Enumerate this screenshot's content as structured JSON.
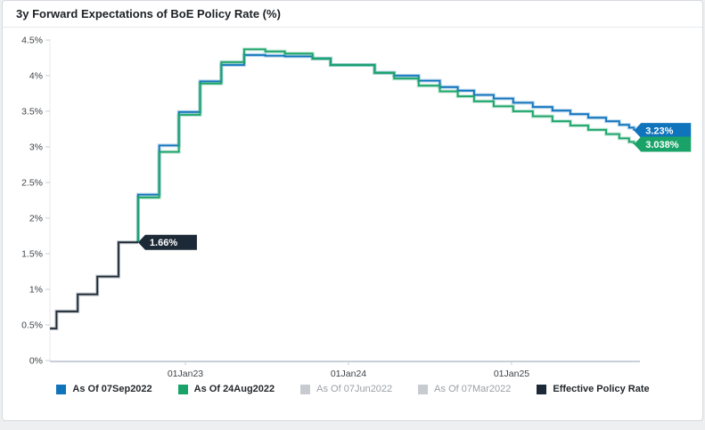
{
  "header": {
    "title": "3y Forward Expectations of BoE Policy Rate (%)"
  },
  "chart_data": {
    "type": "line",
    "step": true,
    "title": "3y Forward Expectations of BoE Policy Rate (%)",
    "grid": false,
    "legend_position": "bottom",
    "x_axis": {
      "range": [
        2022.15,
        2025.82
      ],
      "ticks": [
        {
          "pos": 2023,
          "label": "01Jan23"
        },
        {
          "pos": 2024,
          "label": "01Jan24"
        },
        {
          "pos": 2025,
          "label": "01Jan25"
        }
      ]
    },
    "y_axis": {
      "unit": "%",
      "range": [
        0,
        4.5
      ],
      "ticks": [
        {
          "v": 0,
          "label": "0%"
        },
        {
          "v": 0.5,
          "label": "0.5%"
        },
        {
          "v": 1,
          "label": "1%"
        },
        {
          "v": 1.5,
          "label": "1.5%"
        },
        {
          "v": 2,
          "label": "2%"
        },
        {
          "v": 2.5,
          "label": "2.5%"
        },
        {
          "v": 3,
          "label": "3%"
        },
        {
          "v": 3.5,
          "label": "3.5%"
        },
        {
          "v": 4,
          "label": "4%"
        },
        {
          "v": 4.5,
          "label": "4.5%"
        }
      ]
    },
    "series": [
      {
        "name": "As Of 07Sep2022",
        "color": "#1074bc",
        "end_label": "3.23%",
        "x_end": 2025.75,
        "tag_width": 64,
        "points": [
          [
            2022.71,
            1.66
          ],
          [
            2022.71,
            2.33
          ],
          [
            2022.84,
            3.02
          ],
          [
            2022.96,
            3.49
          ],
          [
            2023.09,
            3.92
          ],
          [
            2023.22,
            4.15
          ],
          [
            2023.36,
            4.29
          ],
          [
            2023.49,
            4.28
          ],
          [
            2023.61,
            4.27
          ],
          [
            2023.78,
            4.24
          ],
          [
            2023.89,
            4.15
          ],
          [
            2024.16,
            4.04
          ],
          [
            2024.28,
            4.0
          ],
          [
            2024.43,
            3.93
          ],
          [
            2024.56,
            3.84
          ],
          [
            2024.67,
            3.79
          ],
          [
            2024.77,
            3.73
          ],
          [
            2024.89,
            3.68
          ],
          [
            2025.01,
            3.62
          ],
          [
            2025.13,
            3.56
          ],
          [
            2025.25,
            3.51
          ],
          [
            2025.36,
            3.46
          ],
          [
            2025.47,
            3.41
          ],
          [
            2025.58,
            3.36
          ],
          [
            2025.66,
            3.31
          ],
          [
            2025.72,
            3.27
          ],
          [
            2025.75,
            3.23
          ]
        ]
      },
      {
        "name": "As Of 24Aug2022",
        "color": "#1aa368",
        "end_label": "3.038%",
        "x_end": 2025.75,
        "tag_width": 64,
        "points": [
          [
            2022.71,
            1.66
          ],
          [
            2022.71,
            2.29
          ],
          [
            2022.84,
            2.93
          ],
          [
            2022.96,
            3.45
          ],
          [
            2023.09,
            3.89
          ],
          [
            2023.22,
            4.19
          ],
          [
            2023.36,
            4.37
          ],
          [
            2023.49,
            4.34
          ],
          [
            2023.61,
            4.31
          ],
          [
            2023.78,
            4.24
          ],
          [
            2023.89,
            4.15
          ],
          [
            2024.16,
            4.04
          ],
          [
            2024.28,
            3.96
          ],
          [
            2024.43,
            3.86
          ],
          [
            2024.56,
            3.78
          ],
          [
            2024.67,
            3.71
          ],
          [
            2024.77,
            3.64
          ],
          [
            2024.89,
            3.57
          ],
          [
            2025.01,
            3.5
          ],
          [
            2025.13,
            3.43
          ],
          [
            2025.25,
            3.36
          ],
          [
            2025.36,
            3.3
          ],
          [
            2025.47,
            3.24
          ],
          [
            2025.58,
            3.18
          ],
          [
            2025.66,
            3.12
          ],
          [
            2025.72,
            3.07
          ],
          [
            2025.75,
            3.038
          ]
        ]
      },
      {
        "name": "Effective Policy Rate",
        "color": "#1c2936",
        "end_label": "1.66%",
        "x_end": 2022.71,
        "tag_width": 66,
        "points": [
          [
            2022.17,
            0.45
          ],
          [
            2022.21,
            0.69
          ],
          [
            2022.34,
            0.93
          ],
          [
            2022.46,
            1.18
          ],
          [
            2022.59,
            1.66
          ]
        ]
      }
    ],
    "legend": [
      {
        "label": "As Of 07Sep2022",
        "color": "#1074bc",
        "enabled": true
      },
      {
        "label": "As Of 24Aug2022",
        "color": "#1aa368",
        "enabled": true
      },
      {
        "label": "As Of 07Jun2022",
        "color": "#c7cbcf",
        "enabled": false
      },
      {
        "label": "As Of 07Mar2022",
        "color": "#c7cbcf",
        "enabled": false
      },
      {
        "label": "Effective Policy Rate",
        "color": "#1c2936",
        "enabled": true
      }
    ],
    "colors": {
      "axis_line": "#b6bfc9",
      "tick_mark": "#c9cfd6",
      "left_axis_line": "#e7eaed",
      "axis_text": "#3f4449",
      "tag_text": "#ffffff"
    }
  }
}
